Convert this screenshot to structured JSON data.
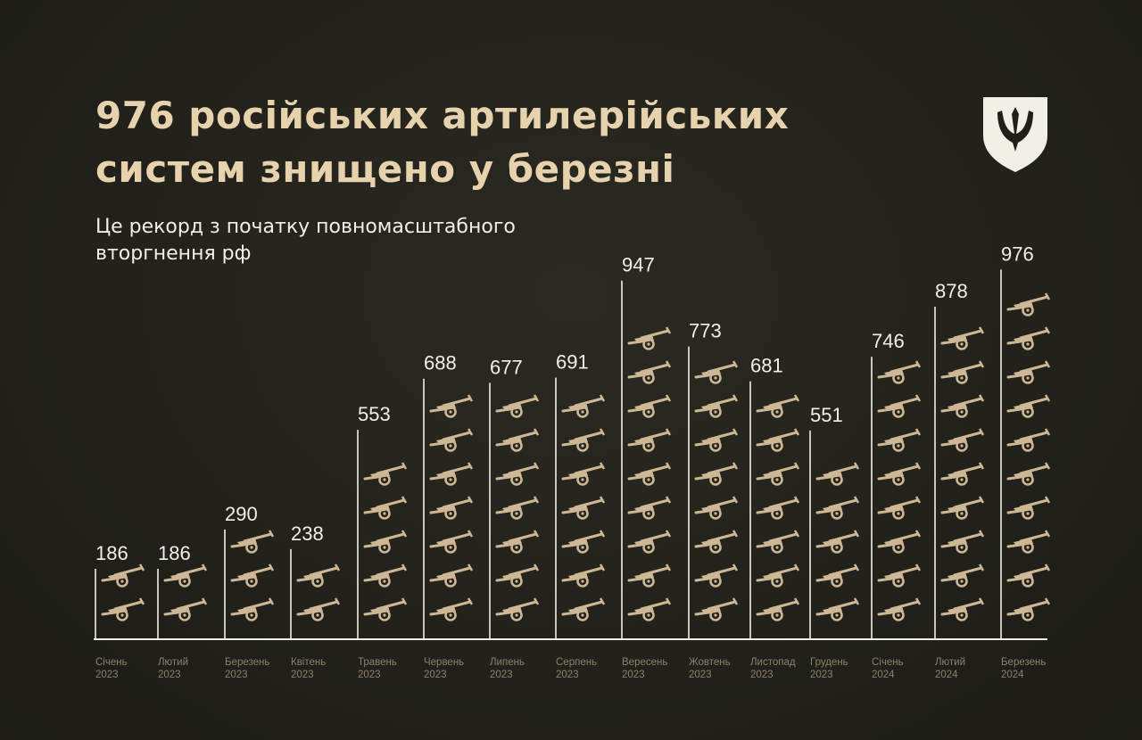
{
  "header": {
    "title_line1": "976 російських артилерійських",
    "title_line2": "систем знищено у березні",
    "subtitle_line1": "Це рекорд з початку повномасштабного",
    "subtitle_line2": "вторгнення рф"
  },
  "colors": {
    "background": "#201f19",
    "title": "#e6d2ad",
    "text": "#f2efe6",
    "axis": "#f2efe6",
    "icon": "#cdb794",
    "month_label": "#8b826d"
  },
  "chart_data": {
    "type": "bar",
    "title": "976 російських артилерійських систем знищено у березні",
    "subtitle": "Це рекорд з початку повномасштабного вторгнення рф",
    "categories": [
      {
        "month": "Січень",
        "year": "2023"
      },
      {
        "month": "Лютий",
        "year": "2023"
      },
      {
        "month": "Березень",
        "year": "2023"
      },
      {
        "month": "Квітень",
        "year": "2023"
      },
      {
        "month": "Травень",
        "year": "2023"
      },
      {
        "month": "Червень",
        "year": "2023"
      },
      {
        "month": "Липень",
        "year": "2023"
      },
      {
        "month": "Серпень",
        "year": "2023"
      },
      {
        "month": "Вересень",
        "year": "2023"
      },
      {
        "month": "Жовтень",
        "year": "2023"
      },
      {
        "month": "Листопад",
        "year": "2023"
      },
      {
        "month": "Грудень",
        "year": "2023"
      },
      {
        "month": "Січень",
        "year": "2024"
      },
      {
        "month": "Лютий",
        "year": "2024"
      },
      {
        "month": "Березень",
        "year": "2024"
      }
    ],
    "values": [
      186,
      186,
      290,
      238,
      553,
      688,
      677,
      691,
      947,
      773,
      681,
      551,
      746,
      878,
      976
    ],
    "icon": "artillery-icon",
    "icons_per_bar": [
      2,
      2,
      3,
      2,
      5,
      7,
      7,
      7,
      9,
      8,
      7,
      5,
      8,
      9,
      10
    ],
    "xlabel": "",
    "ylabel": "",
    "ylim": [
      0,
      976
    ],
    "grid": false,
    "legend": "none"
  }
}
